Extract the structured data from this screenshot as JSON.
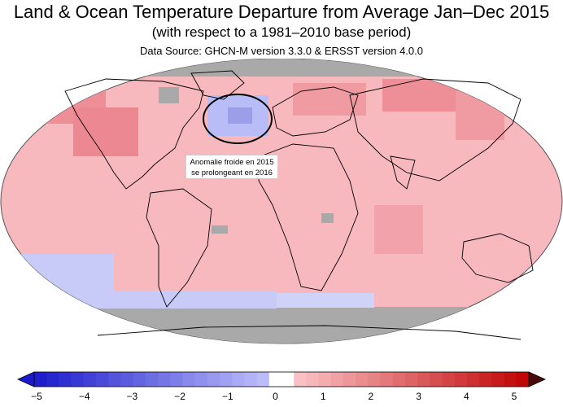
{
  "header": {
    "title": "Land & Ocean Temperature Departure from Average Jan–Dec 2015",
    "subtitle": "(with respect to a 1981–2010 base period)",
    "source": "Data Source: GHCN-M version 3.3.0 & ERSST version 4.0.0"
  },
  "annotation": {
    "line1": "Anomalie froide en 2015",
    "line2": "se prolongeant en 2016"
  },
  "colorbar": {
    "min": -5,
    "max": 5,
    "tick_labels": [
      "−5",
      "−4",
      "−3",
      "−2",
      "−1",
      "0",
      "1",
      "2",
      "3",
      "4",
      "5"
    ],
    "colors": {
      "cold_strong": "#1a1acc",
      "cold_light": "#c8c8ff",
      "zero_band": "#ffffff",
      "warm_light": "#ffd0d4",
      "warm_strong": "#c00000",
      "no_data": "#a9a9a9"
    }
  },
  "map_colors": {
    "ocean_base": "#f7b8be",
    "land_base": "#f6b0b6",
    "warm_patch": "#ee8f98",
    "cold_patch": "#b8bdf7",
    "cold_patch_dark": "#9a9fe8",
    "no_data": "#a9a9a9",
    "coast": "#000000"
  }
}
